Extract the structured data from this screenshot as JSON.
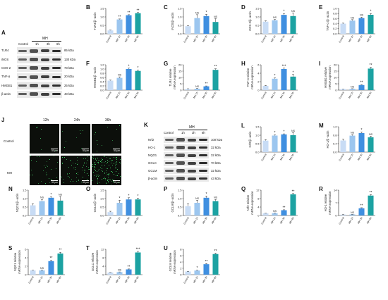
{
  "colors": {
    "control": "#c8dcf5",
    "mh1": "#9cc6ef",
    "mh3": "#3f8fe0",
    "mh6": "#1ca2a2"
  },
  "categories": [
    "Control",
    "MH 1h",
    "MH 3h",
    "MH 6h"
  ],
  "panel_A": {
    "letter": "A",
    "header": "MH",
    "columns": [
      "Control",
      "1h",
      "3h",
      "6h"
    ],
    "proteins": [
      "TLR4",
      "iNOS",
      "COX-2",
      "TNF-α",
      "HMGB1",
      "β-actin"
    ],
    "sizes": [
      "85 kDa",
      "130 kDa",
      "73 kDa",
      "20 kDa",
      "25 kDa",
      "43 kDa"
    ]
  },
  "panel_K": {
    "letter": "K",
    "header": "MH",
    "columns": [
      "Control",
      "1h",
      "3h",
      "6h"
    ],
    "proteins": [
      "Nrf2",
      "HO-1",
      "NQO1",
      "GCLC",
      "GCLM",
      "β-actin"
    ],
    "sizes": [
      "100 kDa",
      "32 kDa",
      "32 kDa",
      "70 kDa",
      "32 kDa",
      "43 kDa"
    ]
  },
  "panel_J": {
    "letter": "J",
    "times": [
      "12h",
      "24h",
      "36h"
    ],
    "rows": [
      "Control",
      "MH"
    ],
    "scale": "50 μm"
  },
  "chart_data": [
    {
      "id": "B",
      "type": "bar",
      "ylabel": "TLR4/β -actin",
      "categories": [
        "Control",
        "MH 1h",
        "MH 3h",
        "MH 6h"
      ],
      "values": [
        0.2,
        0.85,
        1.1,
        1.22
      ],
      "errors": [
        0.02,
        0.03,
        0.03,
        0.04
      ],
      "sig": [
        "",
        "**",
        "**",
        "**"
      ],
      "ylim": [
        0,
        1.5
      ],
      "yticks": [
        "0.0",
        "0.5",
        "1.0",
        "1.5"
      ]
    },
    {
      "id": "C",
      "type": "bar",
      "ylabel": "iNOS/β -actin",
      "categories": [
        "Control",
        "MH 1h",
        "MH 3h",
        "MH 6h"
      ],
      "values": [
        0.45,
        0.93,
        1.05,
        0.7
      ],
      "errors": [
        0.04,
        0.2,
        0.1,
        0.2
      ],
      "sig": [
        "",
        "NS",
        "*",
        "NS"
      ],
      "ylim": [
        0,
        1.5
      ],
      "yticks": [
        "0.0",
        "0.5",
        "1.0",
        "1.5"
      ]
    },
    {
      "id": "D",
      "type": "bar",
      "ylabel": "COX-2/β -actin",
      "categories": [
        "Control",
        "MH 1h",
        "MH 3h",
        "MH 6h"
      ],
      "values": [
        0.72,
        0.8,
        1.12,
        1.05
      ],
      "errors": [
        0.05,
        0.05,
        0.08,
        0.18
      ],
      "sig": [
        "",
        "NS",
        "*",
        "NS"
      ],
      "ylim": [
        0,
        1.5
      ],
      "yticks": [
        "0.0",
        "0.5",
        "1.0",
        "1.5"
      ]
    },
    {
      "id": "E",
      "type": "bar",
      "ylabel": "TNF-α /β -actin",
      "categories": [
        "Control",
        "MH 1h",
        "MH 3h",
        "MH 6h"
      ],
      "values": [
        0.4,
        0.52,
        0.62,
        0.75
      ],
      "errors": [
        0.02,
        0.04,
        0.04,
        0.05
      ],
      "sig": [
        "",
        "NS",
        "NS",
        "*"
      ],
      "ylim": [
        0,
        1.0
      ],
      "yticks": [
        "0.0",
        "0.2",
        "0.4",
        "0.6",
        "0.8",
        "1.0"
      ]
    },
    {
      "id": "F",
      "type": "bar",
      "ylabel": "HMGB1/β -actin",
      "categories": [
        "Control",
        "MH 1h",
        "MH 3h",
        "MH 6h"
      ],
      "values": [
        0.45,
        0.58,
        1.0,
        0.91
      ],
      "errors": [
        0.03,
        0.05,
        0.04,
        0.04
      ],
      "sig": [
        "",
        "NS",
        "*",
        "*"
      ],
      "ylim": [
        0,
        1.2
      ],
      "yticks": [
        "0.0",
        "0.2",
        "0.4",
        "0.6",
        "0.8",
        "1.0",
        "1.2"
      ]
    },
    {
      "id": "G",
      "type": "bar",
      "ylabel": "TLR4 relative\nmRNA expression",
      "categories": [
        "Control",
        "MH 1h",
        "MH 3h",
        "MH 6h"
      ],
      "values": [
        1.0,
        1.1,
        3.0,
        16.0
      ],
      "errors": [
        0.1,
        0.2,
        0.3,
        0.9
      ],
      "sig": [
        "",
        "NS",
        "**",
        "**"
      ],
      "ylim": [
        0,
        20
      ],
      "yticks": [
        "0",
        "5",
        "10",
        "15",
        "20"
      ]
    },
    {
      "id": "H",
      "type": "bar",
      "ylabel": "TNF-α relative\nmRNA expression",
      "categories": [
        "Control",
        "MH 1h",
        "MH 3h",
        "MH 6h"
      ],
      "values": [
        1.0,
        2.7,
        5.0,
        3.2
      ],
      "errors": [
        0.1,
        0.2,
        0.2,
        0.5
      ],
      "sig": [
        "",
        "*",
        "***",
        "*"
      ],
      "ylim": [
        0,
        6
      ],
      "yticks": [
        "0",
        "2",
        "4",
        "6"
      ]
    },
    {
      "id": "I",
      "type": "bar",
      "ylabel": "HMGB1 relative\nmRNA expression",
      "categories": [
        "Control",
        "MH 1h",
        "MH 3h",
        "MH 6h"
      ],
      "values": [
        0.8,
        1.0,
        4.0,
        17.0
      ],
      "errors": [
        0.1,
        0.15,
        0.4,
        1.0
      ],
      "sig": [
        "",
        "NS",
        "**",
        "**"
      ],
      "ylim": [
        0,
        20
      ],
      "yticks": [
        "0",
        "5",
        "10",
        "15",
        "20"
      ]
    },
    {
      "id": "L",
      "type": "bar",
      "ylabel": "Nrf2/β -actin",
      "categories": [
        "Control",
        "MH 1h",
        "MH 3h",
        "MH 6h"
      ],
      "values": [
        0.68,
        0.98,
        1.05,
        1.0
      ],
      "errors": [
        0.06,
        0.04,
        0.03,
        0.15
      ],
      "sig": [
        "",
        "*",
        "*",
        "NS"
      ],
      "ylim": [
        0,
        1.5
      ],
      "yticks": [
        "0.0",
        "0.5",
        "1.0",
        "1.5"
      ]
    },
    {
      "id": "M",
      "type": "bar",
      "ylabel": "HO-1/β -actin",
      "categories": [
        "Control",
        "MH 1h",
        "MH 3h",
        "MH 6h"
      ],
      "values": [
        0.55,
        0.78,
        0.9,
        0.7
      ],
      "errors": [
        0.06,
        0.05,
        0.05,
        0.05
      ],
      "sig": [
        "",
        "NS",
        "*",
        "NS"
      ],
      "ylim": [
        0,
        1.2
      ],
      "yticks": [
        "0.0",
        "0.4",
        "0.8",
        "1.2"
      ]
    },
    {
      "id": "N",
      "type": "bar",
      "ylabel": "NQO1/β -actin",
      "categories": [
        "Control",
        "MH 1h",
        "MH 3h",
        "MH 6h"
      ],
      "values": [
        0.6,
        0.85,
        1.05,
        0.88
      ],
      "errors": [
        0.1,
        0.1,
        0.05,
        0.25
      ],
      "sig": [
        "",
        "NS",
        "*",
        "NS"
      ],
      "ylim": [
        0,
        1.5
      ],
      "yticks": [
        "0.0",
        "0.5",
        "1.0",
        "1.5"
      ]
    },
    {
      "id": "O",
      "type": "bar",
      "ylabel": "GCLC/β -actin",
      "categories": [
        "Control",
        "MH 1h",
        "MH 3h",
        "MH 6h"
      ],
      "values": [
        0.2,
        0.75,
        0.95,
        0.95
      ],
      "errors": [
        0.05,
        0.15,
        0.1,
        0.08
      ],
      "sig": [
        "",
        "*",
        "*",
        "*"
      ],
      "ylim": [
        0,
        1.5
      ],
      "yticks": [
        "0.0",
        "0.5",
        "1.0",
        "1.5"
      ]
    },
    {
      "id": "P",
      "type": "bar",
      "ylabel": "GCLM/β -actin",
      "categories": [
        "Control",
        "MH 1h",
        "MH 3h",
        "MH 6h"
      ],
      "values": [
        0.55,
        0.75,
        1.05,
        0.85
      ],
      "errors": [
        0.15,
        0.15,
        0.1,
        0.1
      ],
      "sig": [
        "",
        "NS",
        "*",
        "NS"
      ],
      "ylim": [
        0,
        1.5
      ],
      "yticks": [
        "0.0",
        "0.5",
        "1.0",
        "1.5"
      ]
    },
    {
      "id": "Q",
      "type": "bar",
      "ylabel": "Nrf2 relative\nmRNA expression",
      "categories": [
        "Control",
        "MH 1h",
        "MH 3h",
        "MH 6h"
      ],
      "values": [
        1.0,
        1.1,
        2.5,
        10.0
      ],
      "errors": [
        0.05,
        0.1,
        0.2,
        0.4
      ],
      "sig": [
        "",
        "NS",
        "**",
        "**"
      ],
      "ylim": [
        0,
        12
      ],
      "yticks": [
        "0",
        "4",
        "8",
        "12"
      ]
    },
    {
      "id": "R",
      "type": "bar",
      "ylabel": "HO-1 relative\nmRNA expression",
      "categories": [
        "Control",
        "MH 1h",
        "MH 3h",
        "MH 6h"
      ],
      "values": [
        0.5,
        0.6,
        4.0,
        11.0
      ],
      "errors": [
        0.05,
        0.05,
        0.3,
        0.5
      ],
      "sig": [
        "",
        "NS",
        "**",
        "**"
      ],
      "ylim": [
        0,
        14
      ],
      "yticks": [
        "0",
        "7",
        "14"
      ]
    },
    {
      "id": "S",
      "type": "bar",
      "ylabel": "NQO1 relative\nmRNA expression",
      "categories": [
        "Control",
        "MH 1h",
        "MH 3h",
        "MH 6h"
      ],
      "values": [
        1.0,
        1.0,
        3.2,
        5.0
      ],
      "errors": [
        0.05,
        0.1,
        0.2,
        0.3
      ],
      "sig": [
        "",
        "NS",
        "**",
        "**"
      ],
      "ylim": [
        0,
        6
      ],
      "yticks": [
        "0",
        "2",
        "4",
        "6"
      ]
    },
    {
      "id": "T",
      "type": "bar",
      "ylabel": "GCLC relative\nmRNA expression",
      "categories": [
        "Control",
        "MH 1h",
        "MH 3h",
        "MH 6h"
      ],
      "values": [
        1.0,
        1.2,
        2.5,
        10.5
      ],
      "errors": [
        0.05,
        0.1,
        0.2,
        0.5
      ],
      "sig": [
        "",
        "NS",
        "**",
        "***"
      ],
      "ylim": [
        0,
        12
      ],
      "yticks": [
        "0",
        "4",
        "8",
        "12"
      ]
    },
    {
      "id": "U",
      "type": "bar",
      "ylabel": "GCLM relative\nmRNA expression",
      "categories": [
        "Control",
        "MH 1h",
        "MH 3h",
        "MH 6h"
      ],
      "values": [
        1.0,
        1.3,
        3.3,
        6.5
      ],
      "errors": [
        0.05,
        0.1,
        0.2,
        0.3
      ],
      "sig": [
        "",
        "*",
        "**",
        "**"
      ],
      "ylim": [
        0,
        8
      ],
      "yticks": [
        "0",
        "2",
        "4",
        "6",
        "8"
      ]
    }
  ]
}
